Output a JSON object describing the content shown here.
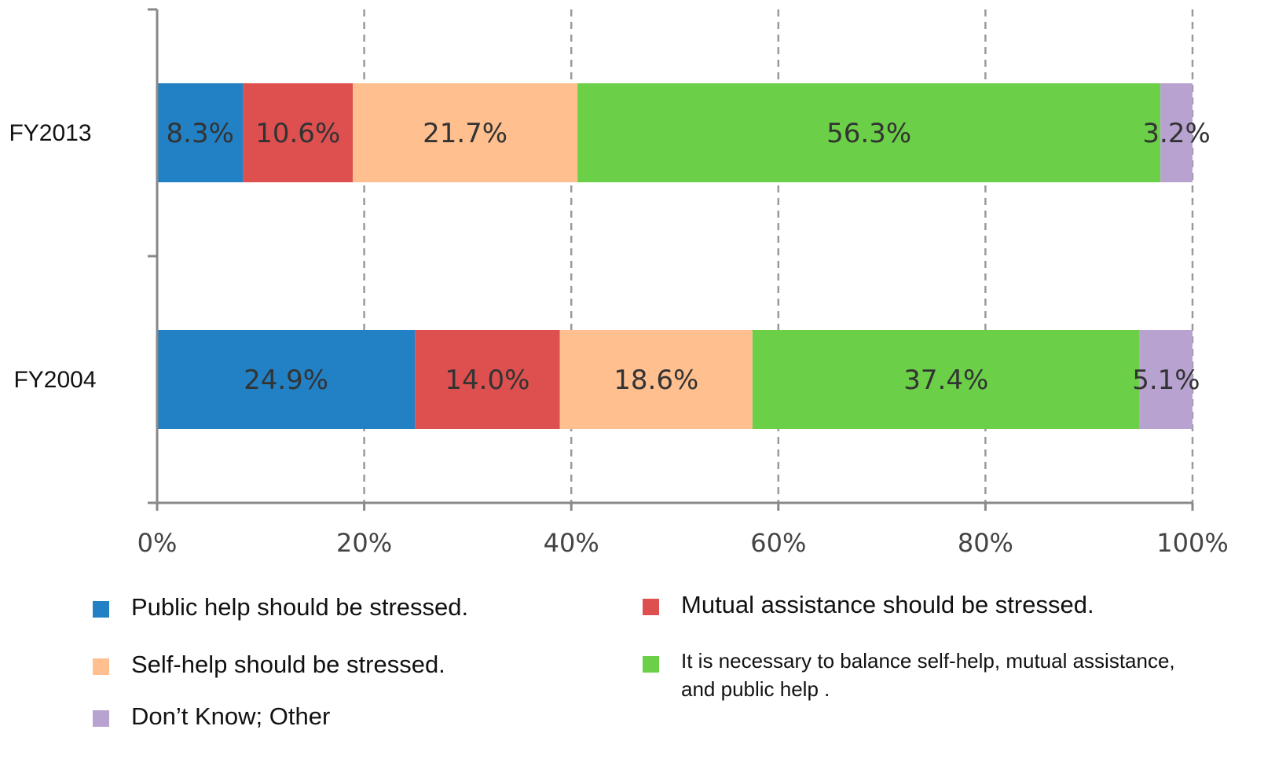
{
  "chart_data": {
    "type": "bar",
    "orientation": "horizontal",
    "stacked": true,
    "percent": true,
    "categories": [
      "FY2013",
      "FY2004"
    ],
    "series": [
      {
        "name": "Public help should be stressed.",
        "color": "#2281c4",
        "values": [
          8.3,
          24.9
        ],
        "labels": [
          "8.3%",
          "24.9%"
        ]
      },
      {
        "name": "Mutual assistance should be stressed.",
        "color": "#de4f4f",
        "values": [
          10.6,
          14.0
        ],
        "labels": [
          "10.6%",
          "14.0%"
        ]
      },
      {
        "name": "Self-help should be stressed.",
        "color": "#ffbf8f",
        "values": [
          21.7,
          18.6
        ],
        "labels": [
          "21.7%",
          "18.6%"
        ]
      },
      {
        "name": "It is necessary to balance self-help, mutual assistance, and public help .",
        "name_lines": [
          "It is necessary to balance self-help, mutual assistance,",
          "and public help ."
        ],
        "color": "#6bd047",
        "values": [
          56.3,
          37.4
        ],
        "labels": [
          "56.3%",
          "37.4%"
        ]
      },
      {
        "name": "Don’t Know; Other",
        "color": "#b8a2d0",
        "values": [
          3.2,
          5.1
        ],
        "labels": [
          "3.2%",
          "5.1%"
        ]
      }
    ],
    "x_ticks": [
      "0%",
      "20%",
      "40%",
      "60%",
      "80%",
      "100%"
    ],
    "xlim": [
      0,
      100
    ],
    "grid": "vertical dashed",
    "legend_position": "bottom"
  }
}
